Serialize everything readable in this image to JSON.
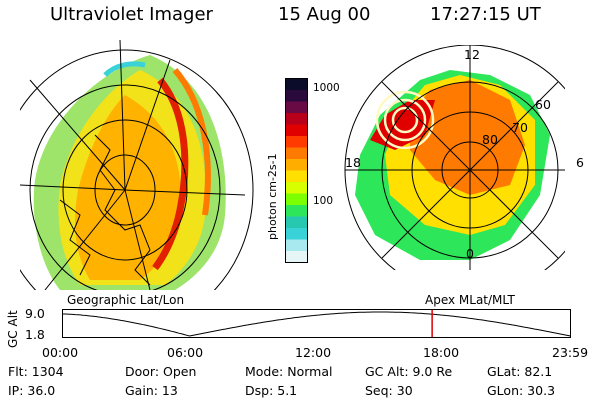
{
  "header": {
    "instrument": "Ultraviolet Imager",
    "date": "15 Aug 00",
    "time": "17:27:15 UT"
  },
  "colorbar": {
    "unit": "photon cm-2s-1",
    "ticks": [
      "1000",
      "100"
    ],
    "colors": [
      "#0b0b2a",
      "#2a0a3d",
      "#6a0a45",
      "#b8001a",
      "#e00000",
      "#ff3b00",
      "#ff7a00",
      "#ffae00",
      "#ffe000",
      "#d8ff00",
      "#7cff00",
      "#2ee65a",
      "#26c9b0",
      "#38d2d8",
      "#a7e9ee",
      "#e6f6f7"
    ]
  },
  "left_map": {
    "projection_label": "Geographic Lat/Lon"
  },
  "right_map": {
    "projection_label": "Apex MLat/MLT",
    "lat_labels": [
      "80",
      "70",
      "60"
    ],
    "mlt_labels": {
      "top": "12",
      "bottom": "0",
      "left": "18",
      "right": "6"
    }
  },
  "alt_plot": {
    "ylabel": "GC Alt",
    "yticks": [
      "9.0",
      "1.8"
    ],
    "xticks": [
      "00:00",
      "06:00",
      "12:00",
      "18:00",
      "23:59"
    ],
    "marker_time": "17:27",
    "marker_color": "#dd0000"
  },
  "stats": {
    "flt": "Flt: 1304",
    "ip": "IP: 36.0",
    "door": "Door: Open",
    "gain": "Gain: 13",
    "mode": "Mode: Normal",
    "dsp": "Dsp:    5.1",
    "gcalt": "GC Alt: 9.0 Re",
    "seq": "Seq: 30",
    "glat": "GLat:  82.1",
    "glon": "GLon:  30.3"
  }
}
